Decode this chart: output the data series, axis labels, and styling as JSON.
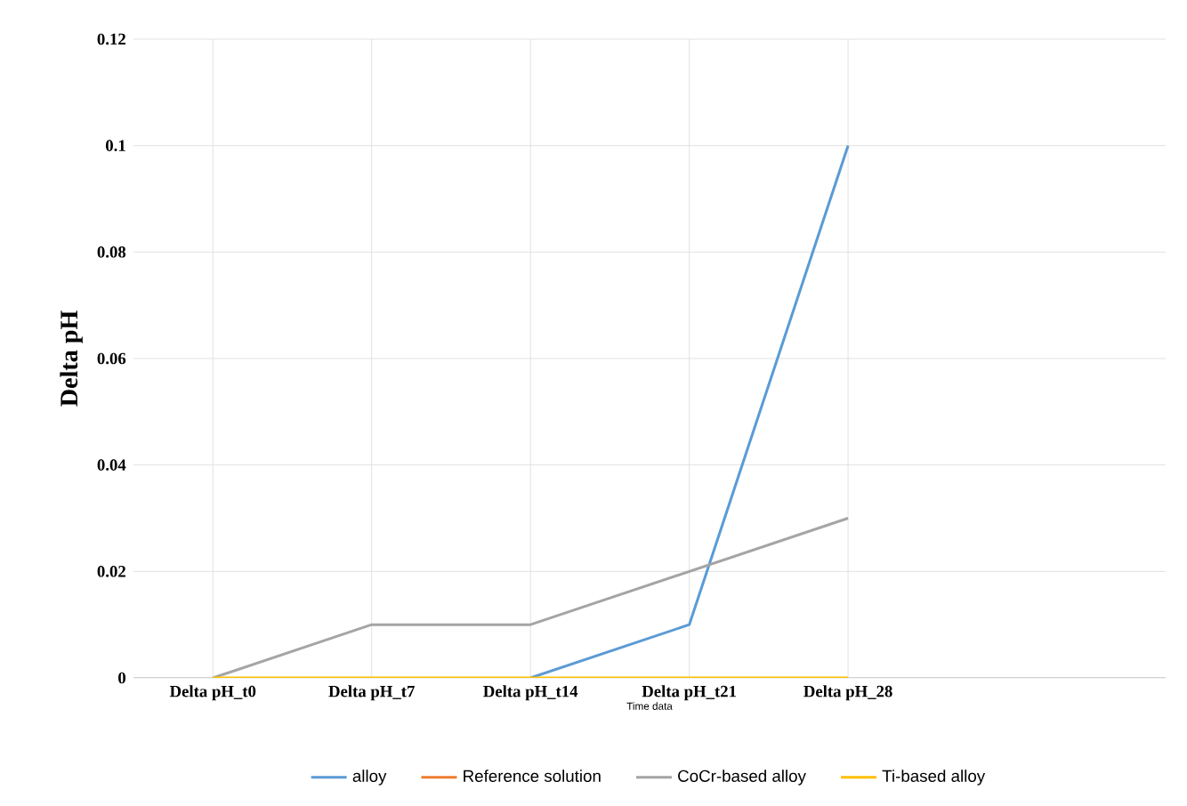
{
  "chart_data": {
    "type": "line",
    "xlabel": "Time data",
    "ylabel": "Delta pH",
    "categories": [
      "Delta pH_t0",
      "Delta pH_t7",
      "Delta pH_t14",
      "Delta pH_t21",
      "Delta pH_28"
    ],
    "series": [
      {
        "name": "alloy",
        "color": "#5b9bd5",
        "values": [
          null,
          null,
          0,
          0.01,
          0.1
        ]
      },
      {
        "name": "Reference solution",
        "color": "#ed7d31",
        "values": [
          null,
          null,
          null,
          null,
          null
        ]
      },
      {
        "name": "CoCr-based alloy",
        "color": "#a5a5a5",
        "values": [
          0,
          0.01,
          0.01,
          0.02,
          0.03
        ]
      },
      {
        "name": "Ti-based alloy",
        "color": "#ffc000",
        "values": [
          0,
          0,
          0,
          0,
          0
        ]
      }
    ],
    "ylim": [
      0,
      0.12
    ],
    "yticks": [
      {
        "value": 0,
        "label": "0"
      },
      {
        "value": 0.02,
        "label": "0.02"
      },
      {
        "value": 0.04,
        "label": "0.04"
      },
      {
        "value": 0.06,
        "label": "0.06"
      },
      {
        "value": 0.08,
        "label": "0.08"
      },
      {
        "value": 0.1,
        "label": "0.1"
      },
      {
        "value": 0.12,
        "label": "0.12"
      }
    ],
    "grid": true,
    "legend": "bottom",
    "marker": "none",
    "line_style": "solid"
  }
}
